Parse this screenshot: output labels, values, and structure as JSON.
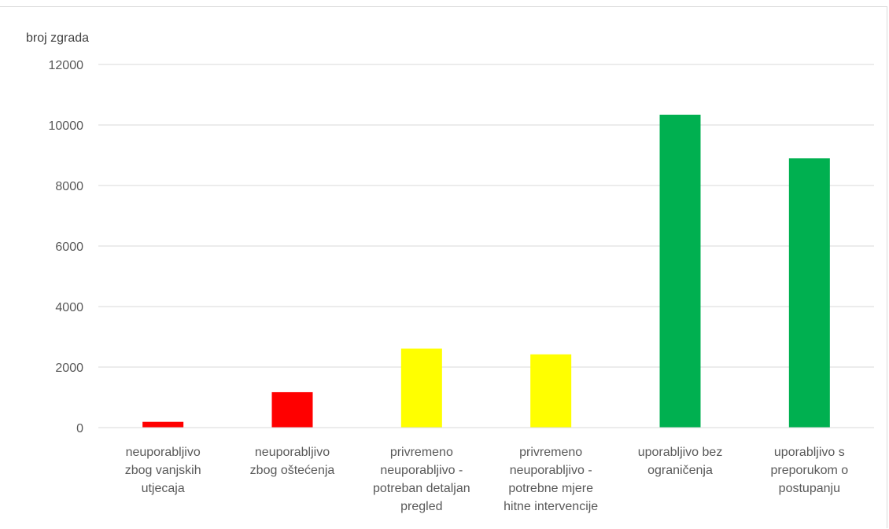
{
  "chart_data": {
    "type": "bar",
    "title": "",
    "xlabel": "",
    "ylabel": "broj zgrada",
    "ylim": [
      0,
      12000
    ],
    "yticks": [
      0,
      2000,
      4000,
      6000,
      8000,
      10000,
      12000
    ],
    "grid": true,
    "legend": "none",
    "categories": [
      [
        "neuporabljivo",
        "zbog vanjskih",
        "utjecaja"
      ],
      [
        "neuporabljivo",
        "zbog oštećenja"
      ],
      [
        "privremeno",
        "neuporabljivo -",
        "potreban detaljan",
        "pregled"
      ],
      [
        "privremeno",
        "neuporabljivo -",
        "potrebne mjere",
        "hitne intervencije"
      ],
      [
        "uporabljivo bez",
        "ograničenja"
      ],
      [
        "uporabljivo s",
        "preporukom o",
        "postupanju"
      ]
    ],
    "values": [
      190,
      1170,
      2610,
      2420,
      10340,
      8900
    ],
    "colors": [
      "#ff0000",
      "#ff0000",
      "#ffff00",
      "#ffff00",
      "#00b050",
      "#00b050"
    ],
    "gridline_color": "#d9d9d9"
  }
}
